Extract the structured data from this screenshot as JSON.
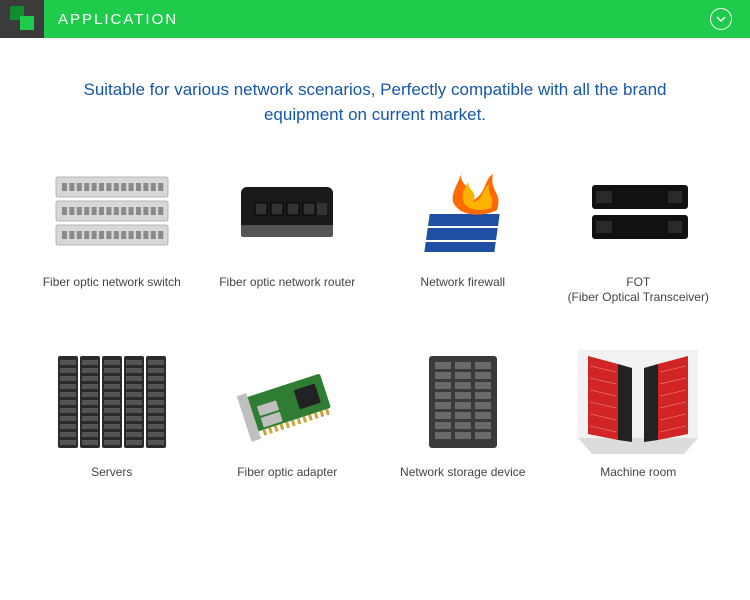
{
  "header": {
    "title": "APPLICATION",
    "bar_color": "#1fcb4a",
    "accent_dark": "#0f8d2f",
    "accent_light": "#1fcb4a",
    "bg_dark": "#3b3b3b",
    "text_color": "#ffffff"
  },
  "tagline": {
    "text": "Suitable for various network scenarios, Perfectly compatible with all the brand equipment on current market.",
    "color": "#1557a8"
  },
  "text_color": "#444444",
  "items": [
    {
      "label": "Fiber optic network switch",
      "icon": "switch"
    },
    {
      "label": "Fiber optic network router",
      "icon": "router"
    },
    {
      "label": "Network firewall",
      "icon": "firewall"
    },
    {
      "label": "FOT\n(Fiber Optical Transceiver)",
      "icon": "fot"
    },
    {
      "label": "Servers",
      "icon": "servers"
    },
    {
      "label": "Fiber optic adapter",
      "icon": "adapter"
    },
    {
      "label": "Network storage device",
      "icon": "storage"
    },
    {
      "label": "Machine room",
      "icon": "room"
    }
  ],
  "palette": {
    "switch_body": "#d7d7d7",
    "switch_port": "#8a8a8a",
    "switch_edge": "#b5b5b5",
    "router_body": "#1a1a1a",
    "router_port": "#333333",
    "router_trim": "#555555",
    "firewall_box": "#1e4fa3",
    "firewall_flame1": "#ff6a00",
    "firewall_flame2": "#ffb300",
    "fot_body": "#111111",
    "fot_port": "#2a2a2a",
    "servers_body": "#2a2a2a",
    "servers_slot": "#555555",
    "adapter_board": "#2f7d32",
    "adapter_metal": "#bfbfbf",
    "adapter_chip": "#222222",
    "storage_body": "#3a3a3a",
    "storage_bay": "#6a6a6a",
    "room_wall": "#f2f2f2",
    "room_red": "#d22424",
    "room_dark": "#222222",
    "room_floor": "#dcdcdc"
  }
}
